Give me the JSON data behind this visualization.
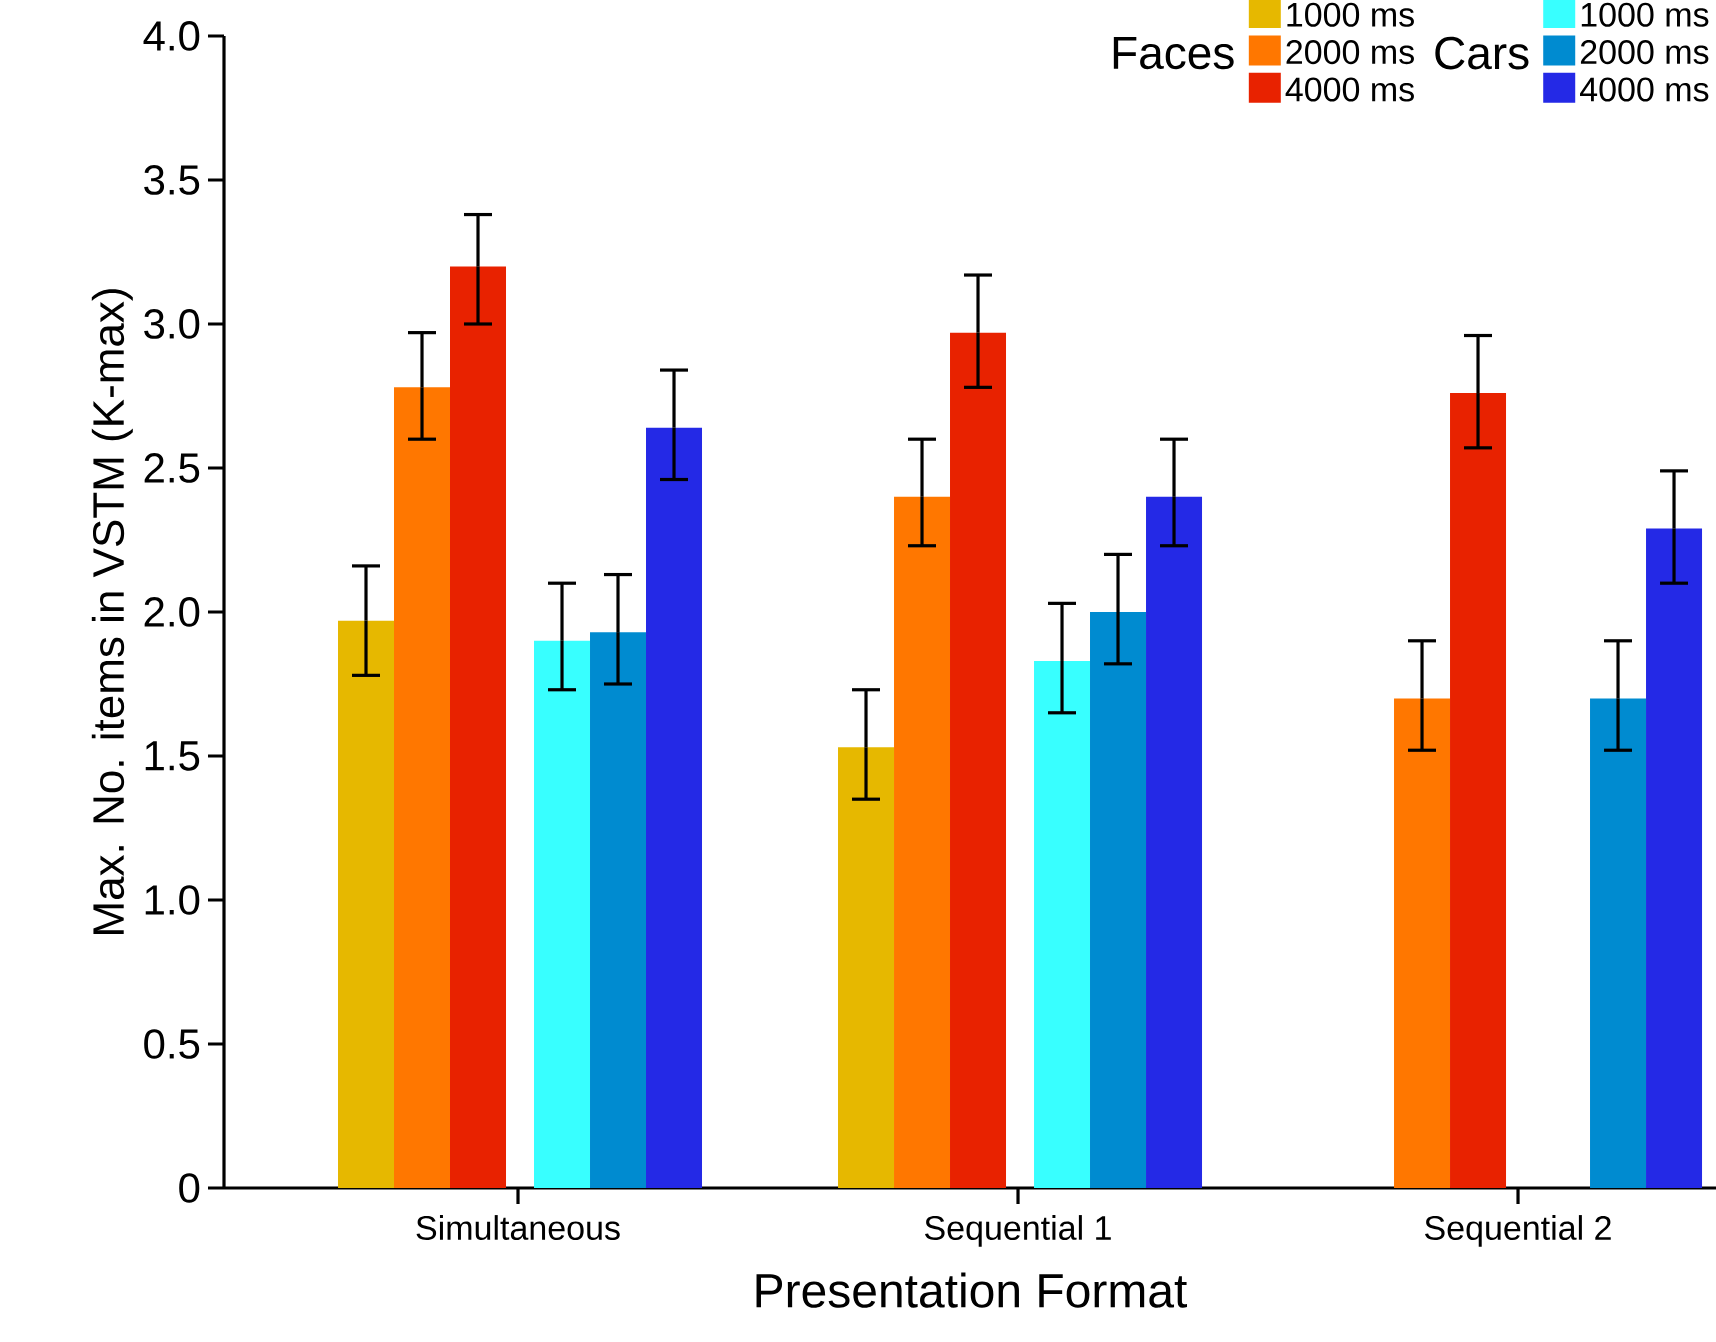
{
  "chart_data": {
    "type": "bar",
    "xlabel": "Presentation Format",
    "ylabel": "Max. No. items in VSTM (K-max)",
    "categories": [
      "Simultaneous",
      "Sequential 1",
      "Sequential 2"
    ],
    "series": [
      {
        "name": "1000 ms",
        "color": "#e6b800",
        "values": [
          1.97,
          1.53,
          null
        ],
        "errors": [
          [
            1.78,
            2.16
          ],
          [
            1.35,
            1.73
          ],
          null
        ]
      },
      {
        "name": "2000 ms",
        "color": "#ff7700",
        "values": [
          2.78,
          2.4,
          1.7
        ],
        "errors": [
          [
            2.6,
            2.97
          ],
          [
            2.23,
            2.6
          ],
          [
            1.52,
            1.9
          ]
        ]
      },
      {
        "name": "4000 ms",
        "color": "#e82200",
        "values": [
          3.2,
          2.97,
          2.76
        ],
        "errors": [
          [
            3.0,
            3.38
          ],
          [
            2.78,
            3.17
          ],
          [
            2.57,
            2.96
          ]
        ]
      },
      {
        "name": "1000 ms",
        "color": "#38ffff",
        "values": [
          1.9,
          1.83,
          null
        ],
        "errors": [
          [
            1.73,
            2.1
          ],
          [
            1.65,
            2.03
          ],
          null
        ]
      },
      {
        "name": "2000 ms",
        "color": "#008bd0",
        "values": [
          1.93,
          2.0,
          1.7
        ],
        "errors": [
          [
            1.75,
            2.13
          ],
          [
            1.82,
            2.2
          ],
          [
            1.52,
            1.9
          ]
        ]
      },
      {
        "name": "4000 ms",
        "color": "#2429e6",
        "values": [
          2.64,
          2.4,
          2.29
        ],
        "errors": [
          [
            2.46,
            2.84
          ],
          [
            2.23,
            2.6
          ],
          [
            2.1,
            2.49
          ]
        ]
      }
    ],
    "annotations": [
      "Faces",
      "Cars"
    ],
    "ylim": [
      0,
      4.0
    ],
    "yticks": [
      0,
      0.5,
      {
        "value": 1,
        "label": "1.0"
      },
      1.5,
      {
        "value": 2,
        "label": "2.0"
      },
      2.5,
      {
        "value": 3,
        "label": "3.0"
      },
      3.5,
      {
        "value": 4,
        "label": "4.0"
      }
    ],
    "legend": "top right",
    "grid": false
  }
}
